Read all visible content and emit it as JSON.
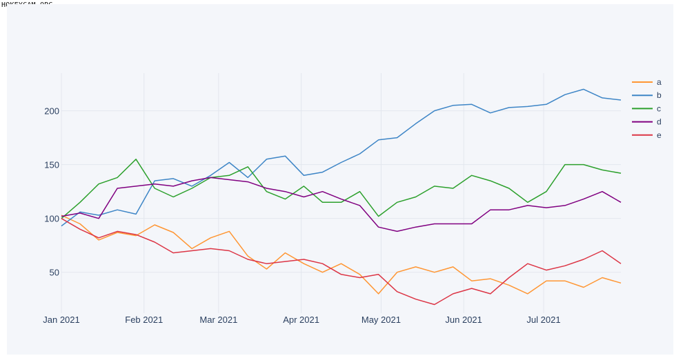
{
  "watermark": "HOKEYCAM.ORG",
  "chart_data": {
    "type": "line",
    "x": [
      "2021-01-01",
      "2021-01-08",
      "2021-01-15",
      "2021-01-22",
      "2021-01-29",
      "2021-02-05",
      "2021-02-12",
      "2021-02-19",
      "2021-02-26",
      "2021-03-05",
      "2021-03-12",
      "2021-03-19",
      "2021-03-26",
      "2021-04-02",
      "2021-04-09",
      "2021-04-16",
      "2021-04-23",
      "2021-04-30",
      "2021-05-07",
      "2021-05-14",
      "2021-05-21",
      "2021-05-28",
      "2021-06-04",
      "2021-06-11",
      "2021-06-18",
      "2021-06-25",
      "2021-07-02",
      "2021-07-09",
      "2021-07-16",
      "2021-07-23",
      "2021-07-30"
    ],
    "series": [
      {
        "name": "a",
        "color": "#ff9633",
        "values": [
          103,
          95,
          80,
          87,
          84,
          94,
          87,
          72,
          82,
          88,
          65,
          53,
          68,
          58,
          50,
          58,
          48,
          30,
          50,
          55,
          50,
          55,
          42,
          44,
          38,
          30,
          42,
          42,
          36,
          45,
          40
        ]
      },
      {
        "name": "b",
        "color": "#3d85c6",
        "values": [
          93,
          106,
          103,
          108,
          104,
          135,
          137,
          130,
          140,
          152,
          138,
          155,
          158,
          140,
          143,
          152,
          160,
          173,
          175,
          188,
          200,
          205,
          206,
          198,
          203,
          204,
          206,
          215,
          220,
          212,
          210
        ]
      },
      {
        "name": "c",
        "color": "#2ca02c",
        "values": [
          100,
          115,
          132,
          138,
          155,
          128,
          120,
          128,
          138,
          140,
          148,
          125,
          118,
          130,
          115,
          115,
          125,
          102,
          115,
          120,
          130,
          128,
          140,
          135,
          128,
          115,
          125,
          150,
          150,
          145,
          142
        ]
      },
      {
        "name": "d",
        "color": "#800080",
        "values": [
          102,
          105,
          100,
          128,
          130,
          132,
          130,
          135,
          138,
          136,
          134,
          128,
          125,
          120,
          125,
          118,
          112,
          92,
          88,
          92,
          95,
          95,
          95,
          108,
          108,
          112,
          110,
          112,
          118,
          125,
          115
        ]
      },
      {
        "name": "e",
        "color": "#dc3545",
        "values": [
          100,
          90,
          82,
          88,
          85,
          78,
          68,
          70,
          72,
          70,
          62,
          58,
          60,
          62,
          58,
          48,
          45,
          48,
          32,
          25,
          20,
          30,
          35,
          30,
          45,
          58,
          52,
          56,
          62,
          70,
          58
        ]
      }
    ],
    "xticks": [
      "Jan 2021",
      "Feb 2021",
      "Mar 2021",
      "Apr 2021",
      "May 2021",
      "Jun 2021",
      "Jul 2021"
    ],
    "xtick_dates": [
      "2021-01-01",
      "2021-02-01",
      "2021-03-01",
      "2021-04-01",
      "2021-05-01",
      "2021-06-01",
      "2021-07-01"
    ],
    "xlim": [
      "2021-01-01",
      "2021-07-30"
    ],
    "yticks": [
      50,
      100,
      150,
      200
    ],
    "ylim": [
      12,
      235
    ],
    "grid": true,
    "legend": "right",
    "title": "",
    "xlabel": "",
    "ylabel": ""
  }
}
